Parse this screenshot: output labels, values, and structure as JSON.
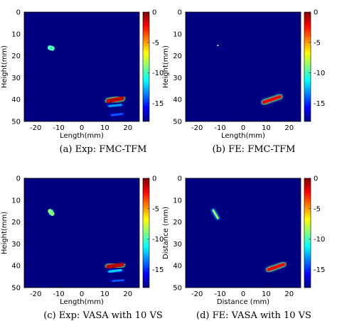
{
  "figure": {
    "background": "#ffffff"
  },
  "colormap": {
    "name": "jet",
    "stops": [
      "#00007f",
      "#0000ff",
      "#007fff",
      "#00ffff",
      "#7fff7f",
      "#ffff00",
      "#ff7f00",
      "#ff0000",
      "#7f0000"
    ],
    "background": "#000080"
  },
  "chart_data": [
    {
      "type": "heatmap",
      "caption": "(a) Exp: FMC-TFM",
      "xlabel": "Length(mm)",
      "ylabel": "Height(mm)",
      "xlim": [
        -25,
        25
      ],
      "ylim": [
        50,
        0
      ],
      "xticks": [
        -20,
        -10,
        0,
        10,
        20
      ],
      "yticks": [
        0,
        10,
        20,
        30,
        40,
        50
      ],
      "colorbar": {
        "ticks": [
          0,
          -5,
          -10,
          -15
        ],
        "range": [
          -18,
          0
        ]
      },
      "features": [
        {
          "x1": -13.8,
          "y1": 16.3,
          "x2": -12.8,
          "y2": 16.6,
          "width": 2.2,
          "value": -10
        },
        {
          "x1": 11.5,
          "y1": 40.7,
          "x2": 17.5,
          "y2": 39.4,
          "width": 1.8,
          "value": -1
        },
        {
          "x1": 12.0,
          "y1": 43.0,
          "x2": 17.0,
          "y2": 42.4,
          "width": 1.0,
          "value": -13
        },
        {
          "x1": 13.0,
          "y1": 47.2,
          "x2": 17.5,
          "y2": 46.5,
          "width": 0.8,
          "value": -14
        }
      ]
    },
    {
      "type": "heatmap",
      "caption": "(b) FE: FMC-TFM",
      "xlabel": "Length(mm)",
      "ylabel": "Height(mm)",
      "xlim": [
        -25,
        25
      ],
      "ylim": [
        50,
        0
      ],
      "xticks": [
        -20,
        -10,
        0,
        10,
        20
      ],
      "yticks": [
        0,
        10,
        20,
        30,
        40,
        50
      ],
      "colorbar": {
        "ticks": [
          0,
          -5,
          -10,
          -15
        ],
        "range": [
          -18,
          0
        ]
      },
      "features": [
        {
          "x1": -11.2,
          "y1": 15.3,
          "x2": -10.8,
          "y2": 15.2,
          "width": 0.5,
          "value": -9
        },
        {
          "x1": 9.0,
          "y1": 41.2,
          "x2": 16.0,
          "y2": 38.7,
          "width": 1.4,
          "value": -2
        }
      ]
    },
    {
      "type": "heatmap",
      "caption": "(c) Exp: VASA with 10 VS",
      "xlabel": "Length(mm)",
      "ylabel": "Height(mm)",
      "xlim": [
        -25,
        25
      ],
      "ylim": [
        50,
        0
      ],
      "xticks": [
        -20,
        -10,
        0,
        10,
        20
      ],
      "yticks": [
        0,
        10,
        20,
        30,
        40,
        50
      ],
      "colorbar": {
        "ticks": [
          0,
          -5,
          -10,
          -15
        ],
        "range": [
          -18,
          0
        ]
      },
      "features": [
        {
          "x1": -13.8,
          "y1": 15.0,
          "x2": -12.8,
          "y2": 16.2,
          "width": 2.0,
          "value": -9
        },
        {
          "x1": 11.5,
          "y1": 40.4,
          "x2": 17.5,
          "y2": 39.5,
          "width": 1.8,
          "value": -1
        },
        {
          "x1": 12.0,
          "y1": 42.7,
          "x2": 17.0,
          "y2": 42.0,
          "width": 1.0,
          "value": -12
        },
        {
          "x1": 13.5,
          "y1": 47.0,
          "x2": 18.0,
          "y2": 46.6,
          "width": 0.8,
          "value": -14
        }
      ]
    },
    {
      "type": "heatmap",
      "caption": "(d) FE: VASA with 10 VS",
      "xlabel": "Distance (mm)",
      "ylabel": "Distance (mm)",
      "xlim": [
        -25,
        25
      ],
      "ylim": [
        50,
        0
      ],
      "xticks": [
        -20,
        -10,
        0,
        10,
        20
      ],
      "yticks": [
        0,
        10,
        20,
        30,
        40,
        50
      ],
      "colorbar": {
        "ticks": [
          0,
          -5,
          -10,
          -15
        ],
        "range": [
          -18,
          0
        ]
      },
      "features": [
        {
          "x1": -13.0,
          "y1": 14.7,
          "x2": -11.0,
          "y2": 18.2,
          "width": 0.8,
          "value": -8
        },
        {
          "x1": 11.0,
          "y1": 41.8,
          "x2": 17.5,
          "y2": 39.4,
          "width": 1.4,
          "value": -2
        }
      ]
    }
  ]
}
